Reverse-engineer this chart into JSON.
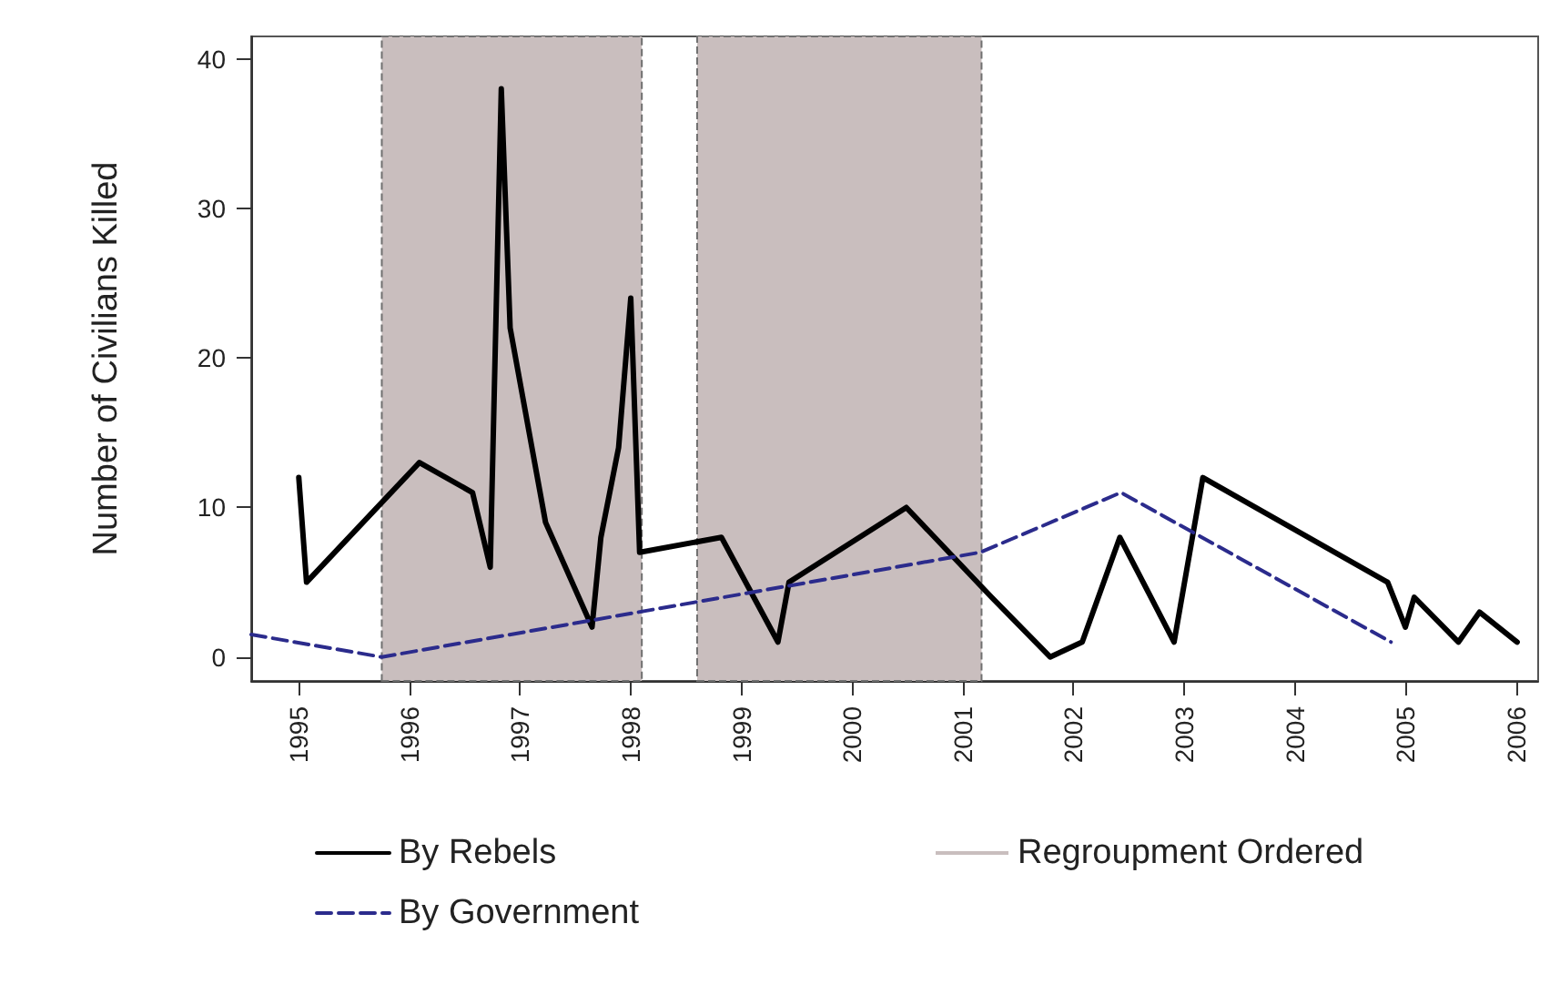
{
  "chart_data": {
    "type": "line",
    "ylabel": "Number of Civilians Killed",
    "xlim": [
      1994.57,
      2006.2
    ],
    "xticks": [
      1995,
      1996,
      1997,
      1998,
      1999,
      2000,
      2001,
      2002,
      2003,
      2004,
      2005,
      2006
    ],
    "ylim": [
      -1.6,
      41.5
    ],
    "yticks": [
      0,
      10,
      20,
      30,
      40
    ],
    "grid": false,
    "legend": "bottom",
    "marker": "none",
    "series": [
      {
        "name": "By Rebels",
        "color": "#000000",
        "line_style": "solid",
        "x": [
          1995.0,
          1995.07,
          1996.09,
          1996.57,
          1996.73,
          1996.83,
          1996.91,
          1997.23,
          1997.65,
          1997.73,
          1997.89,
          1998.0,
          1998.08,
          1998.82,
          1999.33,
          1999.43,
          2000.49,
          2001.26,
          2001.79,
          2002.08,
          2002.42,
          2002.91,
          2003.17,
          2004.84,
          2005.0,
          2005.08,
          2005.48,
          2005.67,
          2006.01
        ],
        "values": [
          12,
          5,
          13,
          11,
          6,
          38,
          22,
          9,
          2,
          8,
          14,
          24,
          7,
          8,
          1,
          5,
          10,
          4,
          0,
          1,
          8,
          1,
          12,
          5,
          2,
          4,
          1,
          3,
          1
        ]
      },
      {
        "name": "By Government",
        "color": "#2b2b8c",
        "line_style": "dashed",
        "x": [
          1994.57,
          1995.75,
          2001.16,
          2002.43,
          2004.87
        ],
        "values": [
          1.5,
          0,
          7,
          11,
          1
        ]
      }
    ],
    "bands": [
      {
        "axis": "x",
        "from": 1995.75,
        "to": 1998.1,
        "label": "Regroupment Ordered",
        "color": "#c9bebe"
      },
      {
        "axis": "x",
        "from": 1998.6,
        "to": 2001.17,
        "color": "#c9bebe"
      }
    ]
  }
}
